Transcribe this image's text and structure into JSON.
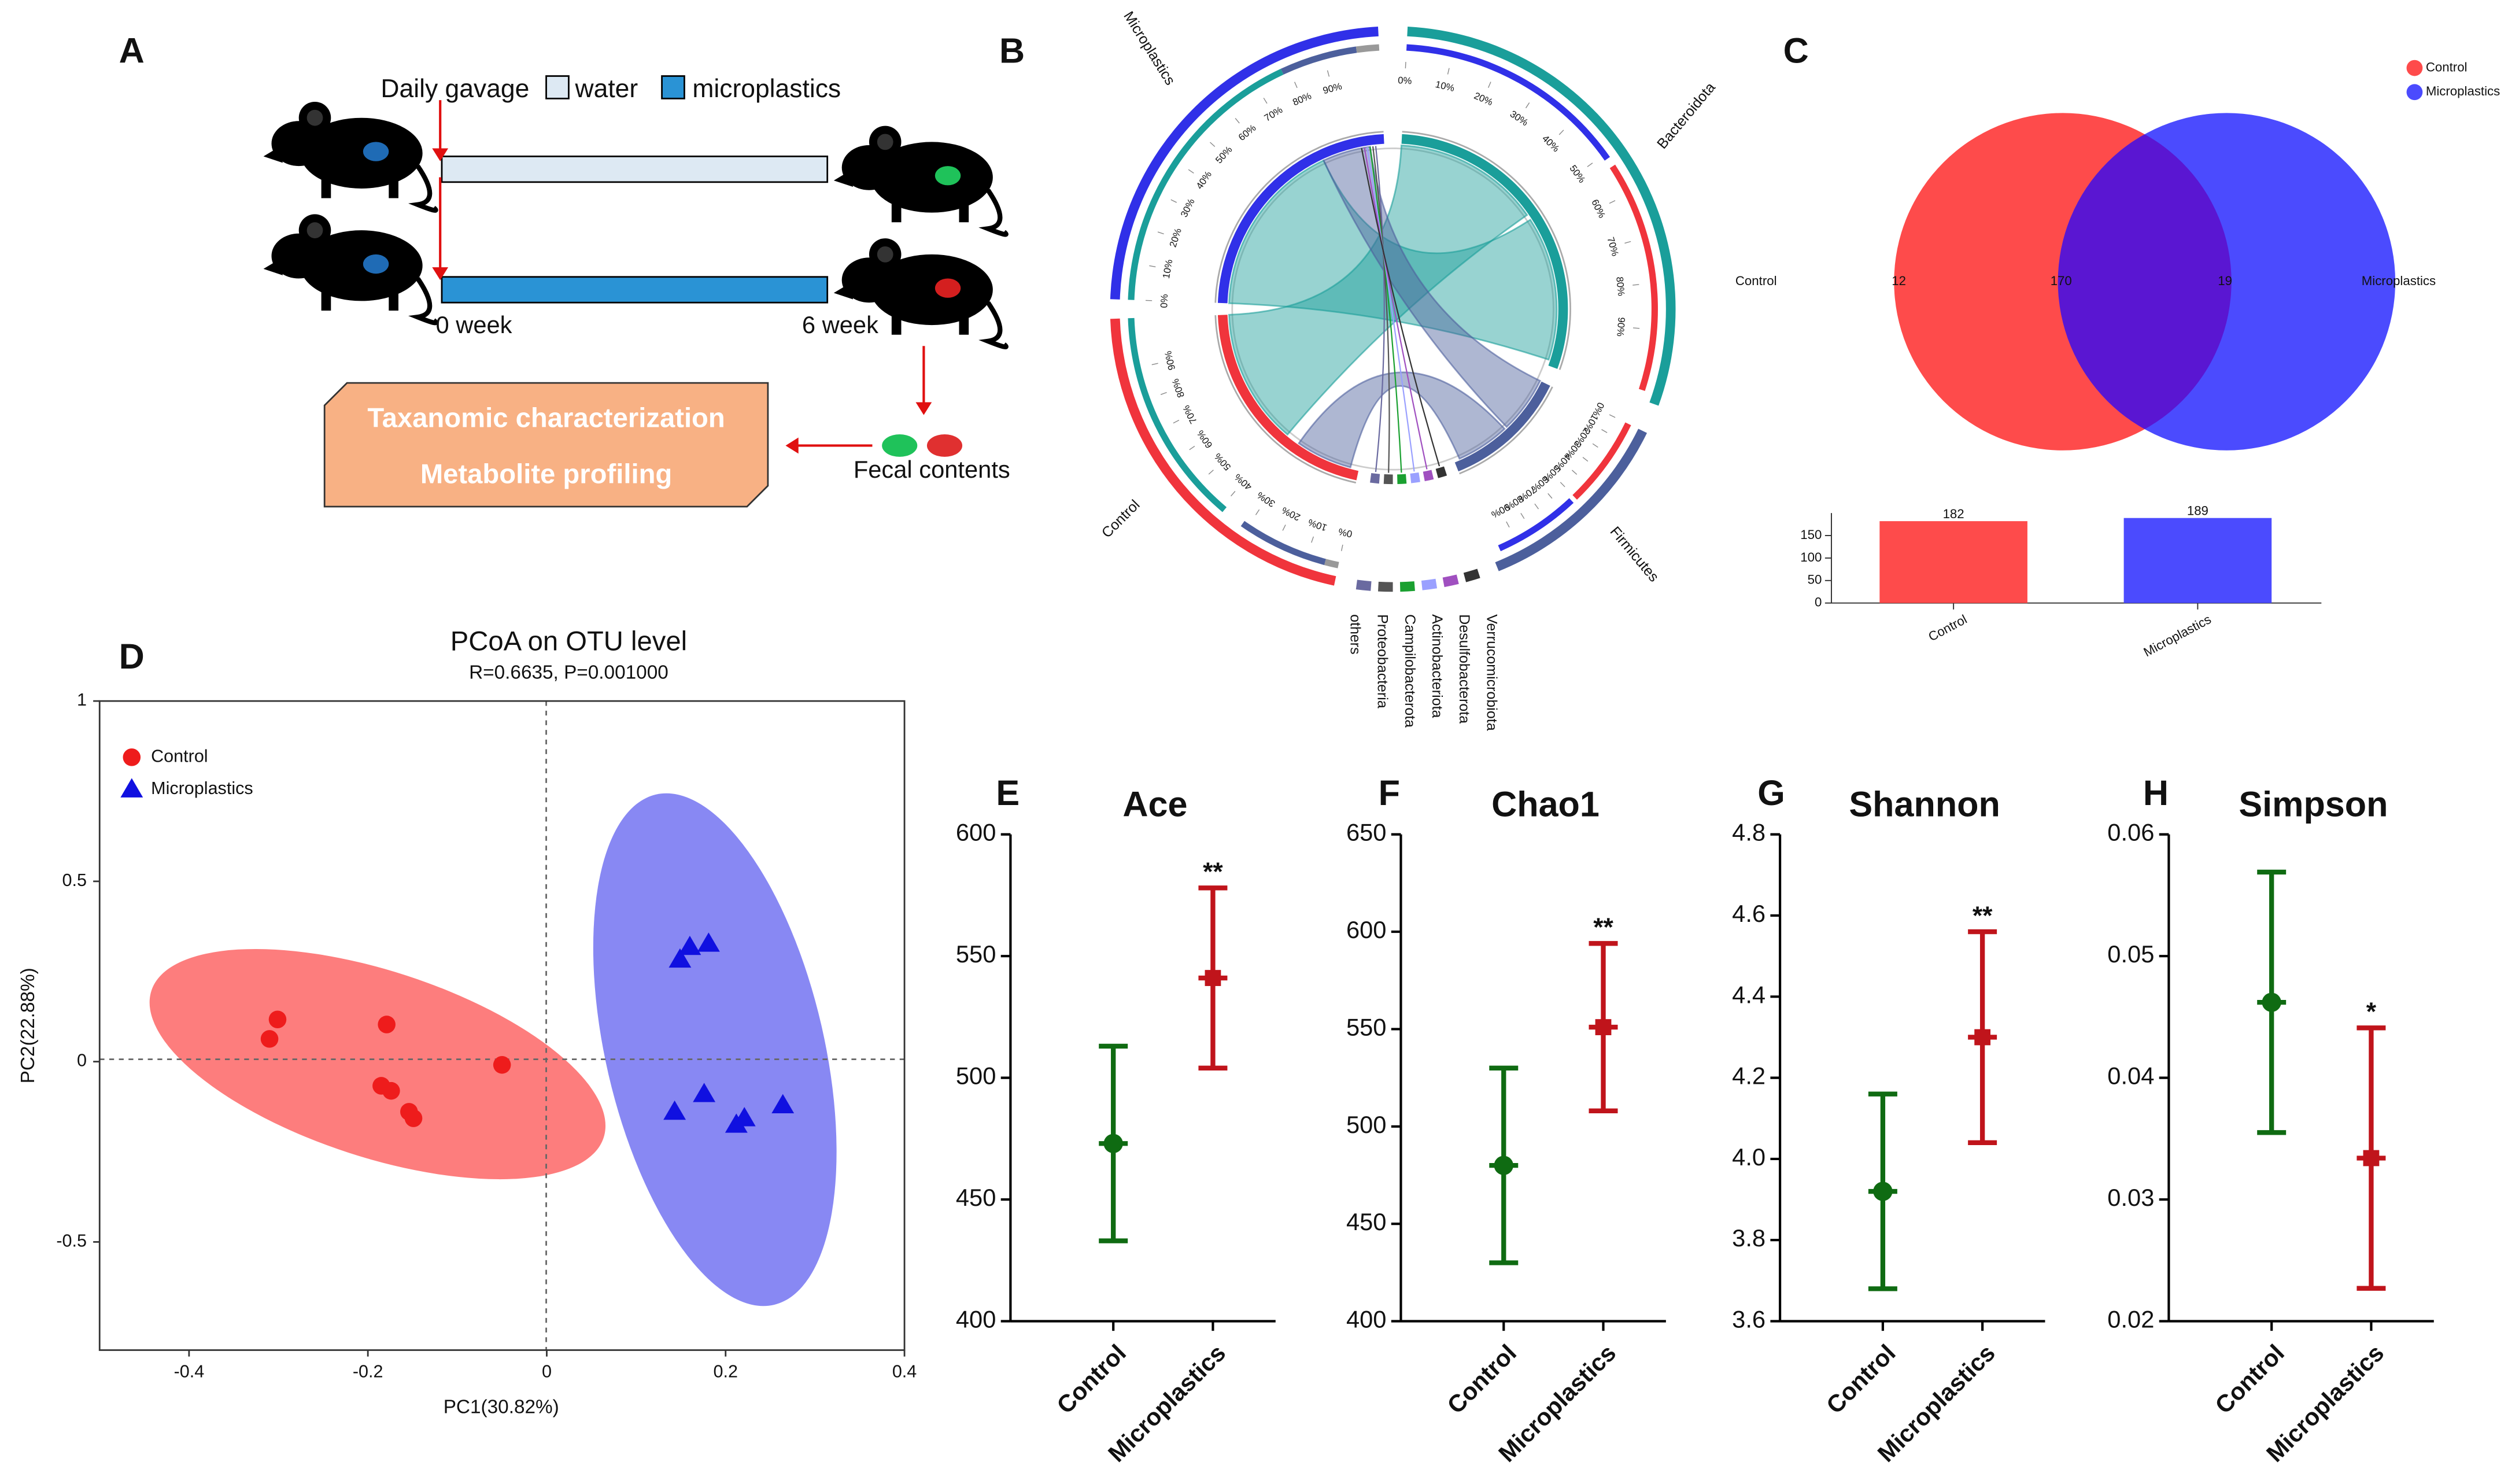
{
  "panel_letters": [
    "A",
    "B",
    "C",
    "D",
    "E",
    "F",
    "G",
    "H"
  ],
  "schematic": {
    "gavage_label": "Daily gavage",
    "legend": [
      "water",
      "microplastics"
    ],
    "timepoints": [
      "0 week",
      "6 week"
    ],
    "analyses": [
      "Taxanomic characterization",
      "Metabolite profiling"
    ],
    "sample": "Fecal contents"
  },
  "chord": {
    "samples": [
      "Microplastics",
      "Control"
    ],
    "phyla": [
      "Bacteroidota",
      "Firmicutes",
      "Verrucomicrobiota",
      "Desulfobacterota",
      "Actinobacteriota",
      "Campilobacterota",
      "Proteobacteria",
      "others"
    ],
    "ring_ticks": [
      "0%",
      "10%",
      "20%",
      "30%",
      "40%",
      "50%",
      "60%",
      "70%",
      "80%",
      "90%"
    ]
  },
  "chart_data": [
    {
      "type": "venn",
      "sets": [
        {
          "name": "Control",
          "color": "#fe4b4b",
          "only": 12
        },
        {
          "name": "Microplastics",
          "color": "#4b4bfe",
          "only": 19
        }
      ],
      "shared": 170,
      "shared_color": "#5a16d2"
    },
    {
      "type": "bar",
      "categories": [
        "Control",
        "Microplastics"
      ],
      "values": [
        182,
        189
      ],
      "colors": [
        "#fe4b4b",
        "#4b4bfe"
      ],
      "ylim": [
        0,
        200
      ],
      "yticks": [
        0,
        50,
        100,
        150
      ]
    },
    {
      "type": "scatter",
      "title": "PCoA on OTU level",
      "subtitle": "R=0.6635, P=0.001000",
      "x_label": "PC1(30.82%)",
      "y_label": "PC2(22.88%)",
      "xlim": [
        -0.5,
        0.4
      ],
      "xticks": [
        -0.4,
        -0.2,
        0,
        0.2,
        0.4
      ],
      "ylim": [
        -0.8,
        1
      ],
      "yticks": [
        -0.5,
        0,
        0.5,
        1
      ],
      "series": [
        {
          "name": "Control",
          "color": "#ee1c1c",
          "marker": "circle",
          "x": [
            -0.31,
            -0.301,
            -0.179,
            -0.185,
            -0.174,
            -0.154,
            -0.149,
            -0.05
          ],
          "y": [
            0.063,
            0.117,
            0.103,
            -0.067,
            -0.081,
            -0.139,
            -0.157,
            -0.009
          ]
        },
        {
          "name": "Microplastics",
          "color": "#1010e0",
          "marker": "triangle",
          "x": [
            0.149,
            0.16,
            0.181,
            0.143,
            0.176,
            0.212,
            0.221,
            0.264
          ],
          "y": [
            0.283,
            0.318,
            0.327,
            -0.139,
            -0.09,
            -0.175,
            -0.157,
            -0.121
          ]
        }
      ]
    },
    {
      "type": "errorbar",
      "title": "Ace",
      "categories": [
        "Control",
        "Microplastics"
      ],
      "values": [
        473,
        541
      ],
      "errors": [
        40,
        37
      ],
      "colors": [
        "#0f6b12",
        "#c0141b"
      ],
      "annotations": [
        null,
        "**"
      ],
      "ylim": [
        400,
        600
      ],
      "yticks": [
        400,
        450,
        500,
        550,
        600
      ]
    },
    {
      "type": "errorbar",
      "title": "Chao1",
      "categories": [
        "Control",
        "Microplastics"
      ],
      "values": [
        480,
        551
      ],
      "errors": [
        50,
        43
      ],
      "colors": [
        "#0f6b12",
        "#c0141b"
      ],
      "annotations": [
        null,
        "**"
      ],
      "ylim": [
        400,
        650
      ],
      "yticks": [
        400,
        450,
        500,
        550,
        600,
        650
      ]
    },
    {
      "type": "errorbar",
      "title": "Shannon",
      "categories": [
        "Control",
        "Microplastics"
      ],
      "values": [
        3.92,
        4.3
      ],
      "errors": [
        0.24,
        0.26
      ],
      "colors": [
        "#0f6b12",
        "#c0141b"
      ],
      "annotations": [
        null,
        "**"
      ],
      "ylim": [
        3.6,
        4.8
      ],
      "yticks": [
        3.6,
        3.8,
        {
          "value": 4,
          "label": "4.0"
        },
        4.2,
        4.4,
        4.6,
        4.8
      ]
    },
    {
      "type": "errorbar",
      "title": "Simpson",
      "categories": [
        "Control",
        "Microplastics"
      ],
      "values": [
        0.0462,
        0.0334
      ],
      "errors": [
        0.0107,
        0.0107
      ],
      "colors": [
        "#0f6b12",
        "#c0141b"
      ],
      "annotations": [
        null,
        "*"
      ],
      "ylim": [
        0.02,
        0.06
      ],
      "yticks": [
        0.02,
        0.03,
        0.04,
        0.05,
        0.06
      ]
    }
  ]
}
